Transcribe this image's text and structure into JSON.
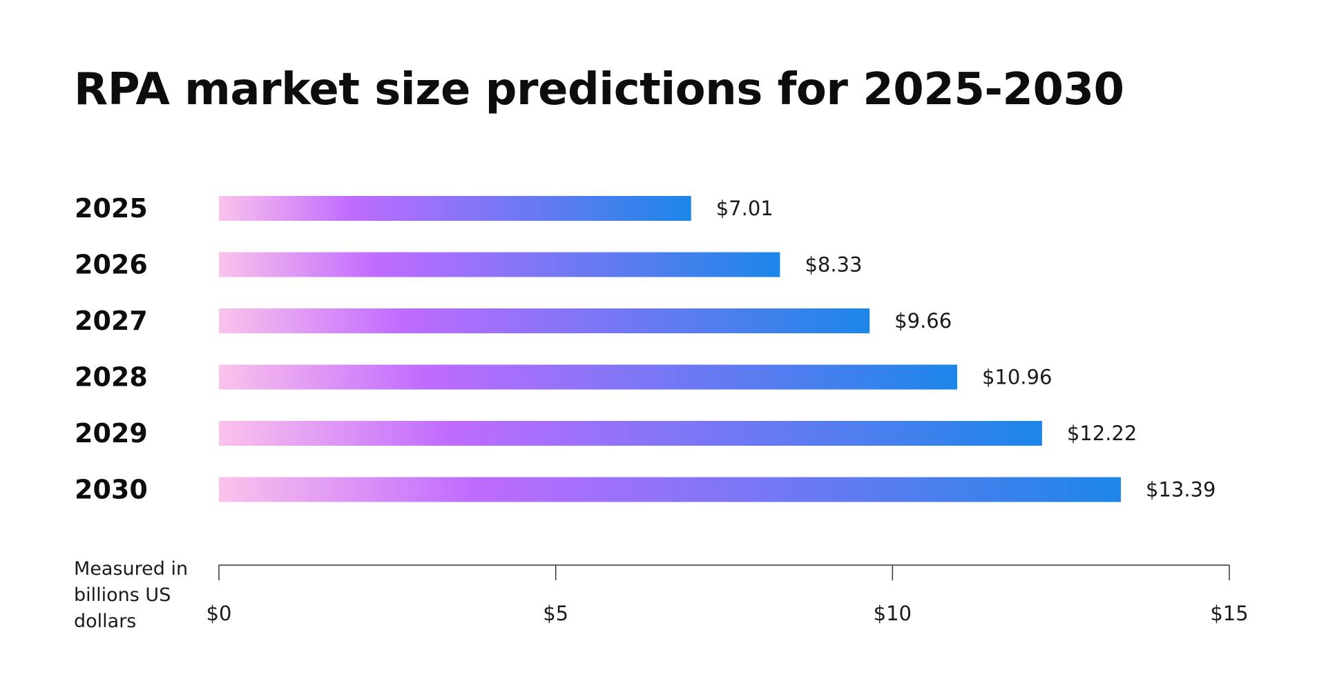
{
  "chart_data": {
    "type": "bar",
    "orientation": "horizontal",
    "title": "RPA market size predictions for 2025-2030",
    "xlabel": "Measured in billions US dollars",
    "ylabel": "",
    "categories": [
      "2025",
      "2026",
      "2027",
      "2028",
      "2029",
      "2030"
    ],
    "values": [
      7.01,
      8.33,
      9.66,
      10.96,
      12.22,
      13.39
    ],
    "value_labels": [
      "$7.01",
      "$8.33",
      "$9.66",
      "$10.96",
      "$12.22",
      "$13.39"
    ],
    "xlim": [
      0,
      15
    ],
    "x_ticks": [
      0,
      5,
      10,
      15
    ],
    "x_tick_labels": [
      "$0",
      "$5",
      "$10",
      "$15"
    ],
    "grid": false,
    "legend": "none",
    "colors": {
      "gradient_start": "#fbc2eb",
      "gradient_mid": "#c06bff",
      "gradient_end": "#1c86e8",
      "axis": "#333333"
    }
  }
}
